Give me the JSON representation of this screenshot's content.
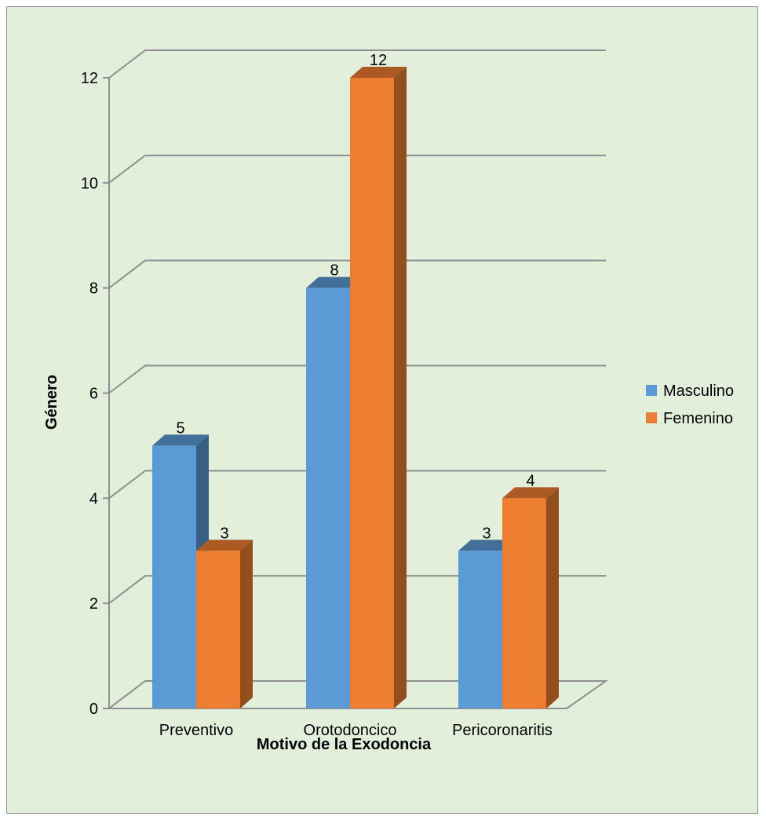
{
  "chart_data": {
    "type": "bar",
    "title": "",
    "xlabel": "Motivo de la Exodoncia",
    "ylabel": "Género",
    "categories": [
      "Preventivo",
      "Orotodoncico",
      "Pericoronaritis"
    ],
    "series": [
      {
        "name": "Masculino",
        "values": [
          5,
          8,
          3
        ],
        "color": "#5b9bd5"
      },
      {
        "name": "Femenino",
        "values": [
          3,
          12,
          4
        ],
        "color": "#ed7d31"
      }
    ],
    "ylim": [
      0,
      12
    ],
    "yticks": [
      "0",
      "2",
      "4",
      "6",
      "8",
      "10",
      "12"
    ],
    "grid": true,
    "legend_position": "right",
    "style": "3d-column",
    "background": "#e2efda"
  }
}
